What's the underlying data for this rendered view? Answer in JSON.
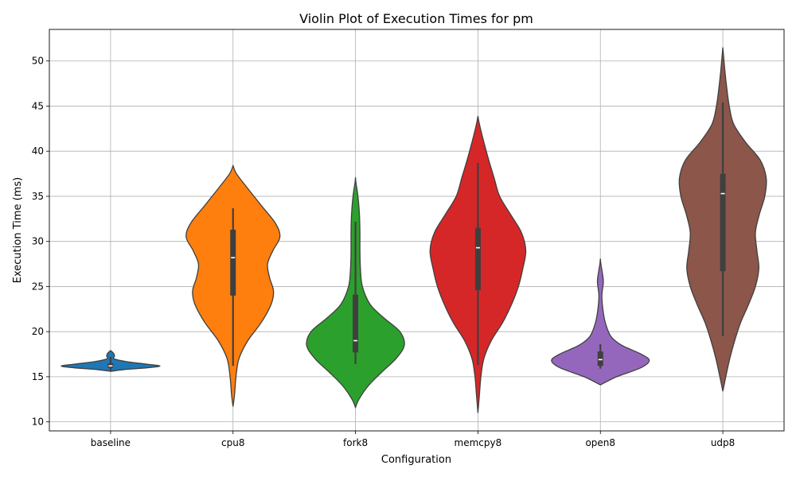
{
  "chart_data": {
    "type": "violin",
    "title": "Violin Plot of Execution Times for pm",
    "xlabel": "Configuration",
    "ylabel": "Execution Time (ms)",
    "ylim": [
      9,
      53.5
    ],
    "yticks": [
      10,
      15,
      20,
      25,
      30,
      35,
      40,
      45,
      50
    ],
    "grid": true,
    "categories": [
      "baseline",
      "cpu8",
      "fork8",
      "memcpy8",
      "open8",
      "udp8"
    ],
    "colors": [
      "#1f77b4",
      "#ff7f0e",
      "#2ca02c",
      "#d62728",
      "#9467bd",
      "#8c564b"
    ],
    "series": [
      {
        "category": "baseline",
        "box": {
          "q1": 16.0,
          "median": 16.2,
          "q3": 16.5,
          "whisker_low": 15.7,
          "whisker_high": 17.2
        },
        "density": [
          [
            15.6,
            0.0
          ],
          [
            15.8,
            0.28
          ],
          [
            16.0,
            0.75
          ],
          [
            16.2,
            1.0
          ],
          [
            16.4,
            0.72
          ],
          [
            16.7,
            0.3
          ],
          [
            17.0,
            0.07
          ],
          [
            17.3,
            0.08
          ],
          [
            17.6,
            0.06
          ],
          [
            17.9,
            0.0
          ]
        ]
      },
      {
        "category": "cpu8",
        "box": {
          "q1": 24.0,
          "median": 28.2,
          "q3": 31.3,
          "whisker_low": 16.2,
          "whisker_high": 33.7
        },
        "density": [
          [
            11.7,
            0.0
          ],
          [
            13.0,
            0.03
          ],
          [
            15.0,
            0.06
          ],
          [
            17.0,
            0.12
          ],
          [
            19.0,
            0.3
          ],
          [
            21.0,
            0.57
          ],
          [
            23.0,
            0.77
          ],
          [
            24.5,
            0.82
          ],
          [
            26.0,
            0.74
          ],
          [
            27.5,
            0.7
          ],
          [
            29.0,
            0.81
          ],
          [
            30.5,
            0.95
          ],
          [
            32.0,
            0.86
          ],
          [
            34.0,
            0.57
          ],
          [
            36.0,
            0.28
          ],
          [
            37.5,
            0.07
          ],
          [
            38.4,
            0.0
          ]
        ]
      },
      {
        "category": "fork8",
        "box": {
          "q1": 17.7,
          "median": 19.0,
          "q3": 24.1,
          "whisker_low": 16.4,
          "whisker_high": 32.2
        },
        "density": [
          [
            11.6,
            0.0
          ],
          [
            12.5,
            0.07
          ],
          [
            14.0,
            0.26
          ],
          [
            15.5,
            0.53
          ],
          [
            17.0,
            0.82
          ],
          [
            18.5,
            0.99
          ],
          [
            20.0,
            0.9
          ],
          [
            21.5,
            0.58
          ],
          [
            23.0,
            0.3
          ],
          [
            25.0,
            0.14
          ],
          [
            27.0,
            0.1
          ],
          [
            29.0,
            0.09
          ],
          [
            31.0,
            0.09
          ],
          [
            33.0,
            0.08
          ],
          [
            35.0,
            0.05
          ],
          [
            36.5,
            0.01
          ],
          [
            37.1,
            0.0
          ]
        ]
      },
      {
        "category": "memcpy8",
        "box": {
          "q1": 24.6,
          "median": 29.3,
          "q3": 31.5,
          "whisker_low": 16.3,
          "whisker_high": 38.7
        },
        "density": [
          [
            11.0,
            0.0
          ],
          [
            13.0,
            0.03
          ],
          [
            15.0,
            0.06
          ],
          [
            17.0,
            0.12
          ],
          [
            19.0,
            0.27
          ],
          [
            21.0,
            0.5
          ],
          [
            23.0,
            0.68
          ],
          [
            25.0,
            0.82
          ],
          [
            27.0,
            0.91
          ],
          [
            29.0,
            0.97
          ],
          [
            31.0,
            0.88
          ],
          [
            33.0,
            0.66
          ],
          [
            35.0,
            0.44
          ],
          [
            37.0,
            0.33
          ],
          [
            39.0,
            0.22
          ],
          [
            41.0,
            0.12
          ],
          [
            43.0,
            0.03
          ],
          [
            43.9,
            0.0
          ]
        ]
      },
      {
        "category": "open8",
        "box": {
          "q1": 16.2,
          "median": 16.9,
          "q3": 17.8,
          "whisker_low": 15.9,
          "whisker_high": 18.6
        },
        "density": [
          [
            14.1,
            0.0
          ],
          [
            15.0,
            0.33
          ],
          [
            16.0,
            0.82
          ],
          [
            16.8,
            0.99
          ],
          [
            17.5,
            0.83
          ],
          [
            18.5,
            0.43
          ],
          [
            19.5,
            0.21
          ],
          [
            21.0,
            0.1
          ],
          [
            22.5,
            0.05
          ],
          [
            24.0,
            0.03
          ],
          [
            25.5,
            0.06
          ],
          [
            26.5,
            0.04
          ],
          [
            27.5,
            0.01
          ],
          [
            28.1,
            0.0
          ]
        ]
      },
      {
        "category": "udp8",
        "box": {
          "q1": 26.7,
          "median": 35.3,
          "q3": 37.5,
          "whisker_low": 19.5,
          "whisker_high": 45.4
        },
        "density": [
          [
            13.4,
            0.0
          ],
          [
            15.0,
            0.06
          ],
          [
            17.0,
            0.14
          ],
          [
            19.0,
            0.24
          ],
          [
            21.0,
            0.36
          ],
          [
            23.0,
            0.52
          ],
          [
            25.0,
            0.66
          ],
          [
            27.0,
            0.73
          ],
          [
            29.0,
            0.69
          ],
          [
            31.0,
            0.66
          ],
          [
            33.0,
            0.74
          ],
          [
            35.0,
            0.85
          ],
          [
            37.0,
            0.88
          ],
          [
            39.0,
            0.76
          ],
          [
            41.0,
            0.46
          ],
          [
            43.0,
            0.22
          ],
          [
            45.0,
            0.13
          ],
          [
            47.0,
            0.08
          ],
          [
            49.0,
            0.04
          ],
          [
            51.5,
            0.0
          ]
        ]
      }
    ]
  }
}
